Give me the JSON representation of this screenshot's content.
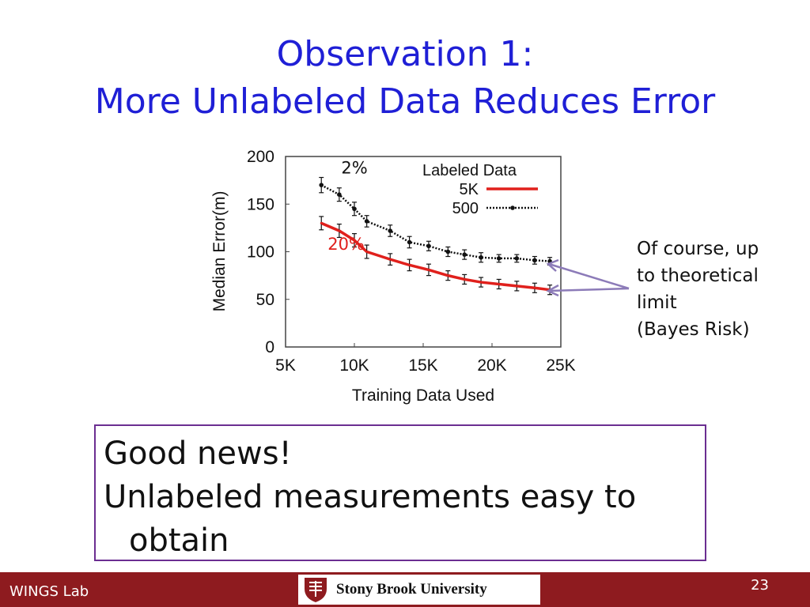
{
  "slide": {
    "title_line1": "Observation 1:",
    "title_line2": "More Unlabeled Data Reduces Error",
    "annotation_lines": [
      "Of course, up",
      "to theoretical",
      "limit",
      "(Bayes Risk)"
    ],
    "box_lines": [
      "Good news!",
      "Unlabeled measurements easy to",
      "obtain"
    ],
    "footer_left": "WINGS Lab",
    "footer_logo_text": "Stony Brook University",
    "page_number": "23",
    "title_color": "#1f1fd6",
    "footer_color": "#8e1b1f",
    "box_border_color": "#6b2e91",
    "arrow_color": "#8c7bb8"
  },
  "chart_data": {
    "type": "line",
    "xlabel": "Training Data Used",
    "ylabel": "Median Error(m)",
    "xlim": [
      5000,
      25000
    ],
    "ylim": [
      0,
      200
    ],
    "xticks": [
      5000,
      10000,
      15000,
      20000,
      25000
    ],
    "xtick_labels": [
      "5K",
      "10K",
      "15K",
      "20K",
      "25K"
    ],
    "yticks": [
      0,
      50,
      100,
      150,
      200
    ],
    "ytick_labels": [
      "0",
      "50",
      "100",
      "150",
      "200"
    ],
    "legend_title": "Labeled Data",
    "legend_position": "top-right",
    "series": [
      {
        "name": "5K",
        "color": "#e0201c",
        "style": "solid",
        "x": [
          7600,
          8900,
          10000,
          10900,
          12600,
          14000,
          15400,
          16800,
          18000,
          19200,
          20500,
          21800,
          23100,
          24200
        ],
        "y": [
          130,
          122,
          112,
          100,
          92,
          86,
          81,
          75,
          71,
          68,
          66,
          64,
          62,
          60
        ],
        "err": [
          7,
          7,
          7,
          7,
          6,
          6,
          6,
          5,
          5,
          5,
          5,
          5,
          5,
          5
        ]
      },
      {
        "name": "500",
        "color": "#111111",
        "style": "dotted",
        "x": [
          7600,
          8900,
          10000,
          10900,
          12600,
          14000,
          15400,
          16800,
          18000,
          19200,
          20500,
          21800,
          23100,
          24200
        ],
        "y": [
          170,
          160,
          145,
          132,
          122,
          110,
          106,
          100,
          97,
          94,
          93,
          93,
          91,
          90
        ],
        "err": [
          8,
          7,
          7,
          6,
          6,
          6,
          5,
          5,
          5,
          5,
          4,
          4,
          4,
          4
        ]
      }
    ],
    "annotations": [
      {
        "text": "2%",
        "x": 10000,
        "y": 182,
        "color": "#111111"
      },
      {
        "text": "20%",
        "x": 9400,
        "y": 102,
        "color": "#e0201c"
      }
    ]
  }
}
